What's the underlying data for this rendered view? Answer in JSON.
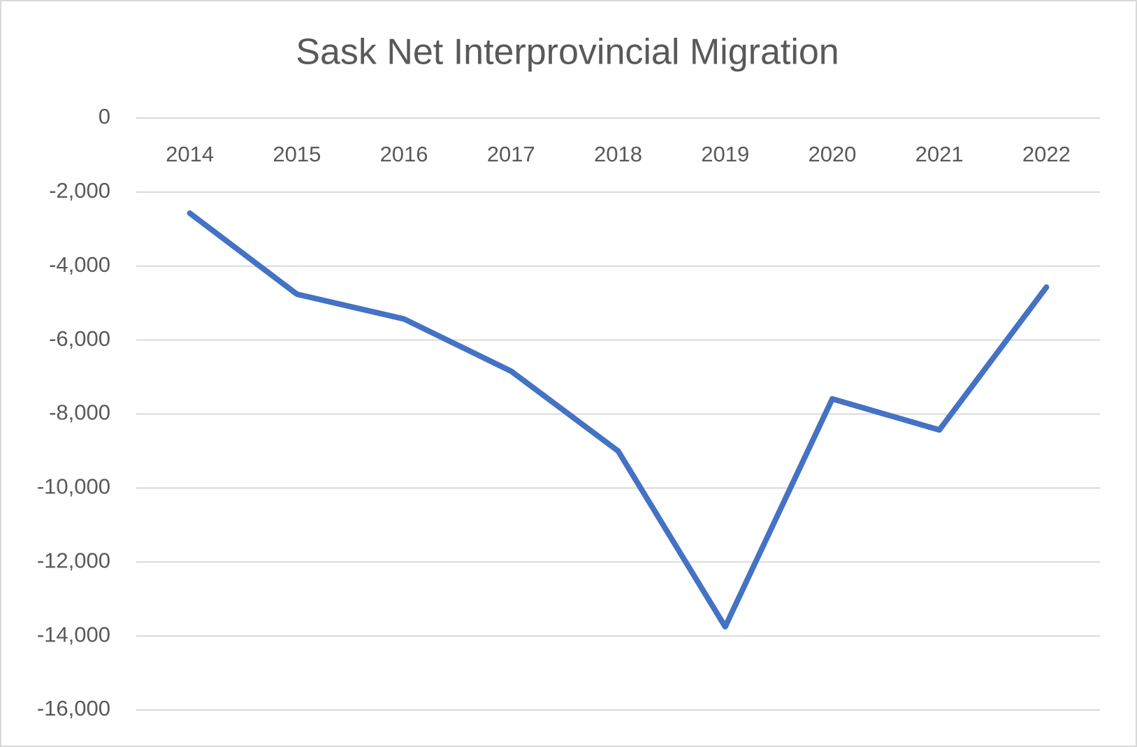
{
  "chart_data": {
    "type": "line",
    "title": "Sask Net Interprovincial Migration",
    "categories": [
      "2014",
      "2015",
      "2016",
      "2017",
      "2018",
      "2019",
      "2020",
      "2021",
      "2022"
    ],
    "series": [
      {
        "name": "Net Interprovincial Migration",
        "color": "#4472c4",
        "values": [
          -2570,
          -4760,
          -5430,
          -6840,
          -9000,
          -13750,
          -7590,
          -8430,
          -4570
        ]
      }
    ],
    "ylim": [
      -16000,
      0
    ],
    "yticks": [
      0,
      {
        "value": -2000,
        "label": "-2,000"
      },
      {
        "value": -4000,
        "label": "-4,000"
      },
      {
        "value": -6000,
        "label": "-6,000"
      },
      {
        "value": -8000,
        "label": "-8,000"
      },
      {
        "value": -10000,
        "label": "-10,000"
      },
      {
        "value": -12000,
        "label": "-12,000"
      },
      {
        "value": -14000,
        "label": "-14,000"
      },
      {
        "value": -16000,
        "label": "-16,000"
      }
    ],
    "grid": true
  }
}
